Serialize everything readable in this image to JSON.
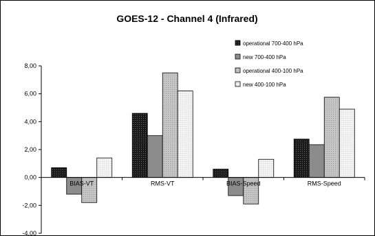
{
  "chart_data": {
    "type": "bar",
    "title": "GOES-12 - Channel 4 (Infrared)",
    "xlabel": "",
    "ylabel": "",
    "categories": [
      "BIAS-VT",
      "RMS-VT",
      "BIAS-Speed",
      "RMS-Speed"
    ],
    "ylim": [
      -4,
      8
    ],
    "yticks": [
      "-4,00",
      "-2,00",
      "0,00",
      "2,00",
      "4,00",
      "6,00",
      "8,00"
    ],
    "grid": false,
    "legend_position": "top-right",
    "series": [
      {
        "name": "operational 700-400 hPa",
        "values": [
          0.7,
          4.6,
          0.6,
          2.75
        ],
        "color": "#1a1a1a",
        "pattern": "dots-dark"
      },
      {
        "name": "new 700-400 hPa",
        "values": [
          -1.2,
          3.0,
          -1.3,
          2.35
        ],
        "color": "#8c8c8c",
        "pattern": "solid"
      },
      {
        "name": "operational 400-100 hPa",
        "values": [
          -1.8,
          7.5,
          -1.9,
          5.75
        ],
        "color": "#bdbdbd",
        "pattern": "dots-light"
      },
      {
        "name": "new 400-100 hPa",
        "values": [
          1.4,
          6.2,
          1.3,
          4.9
        ],
        "color": "#ececec",
        "pattern": "dots-faint"
      }
    ]
  }
}
